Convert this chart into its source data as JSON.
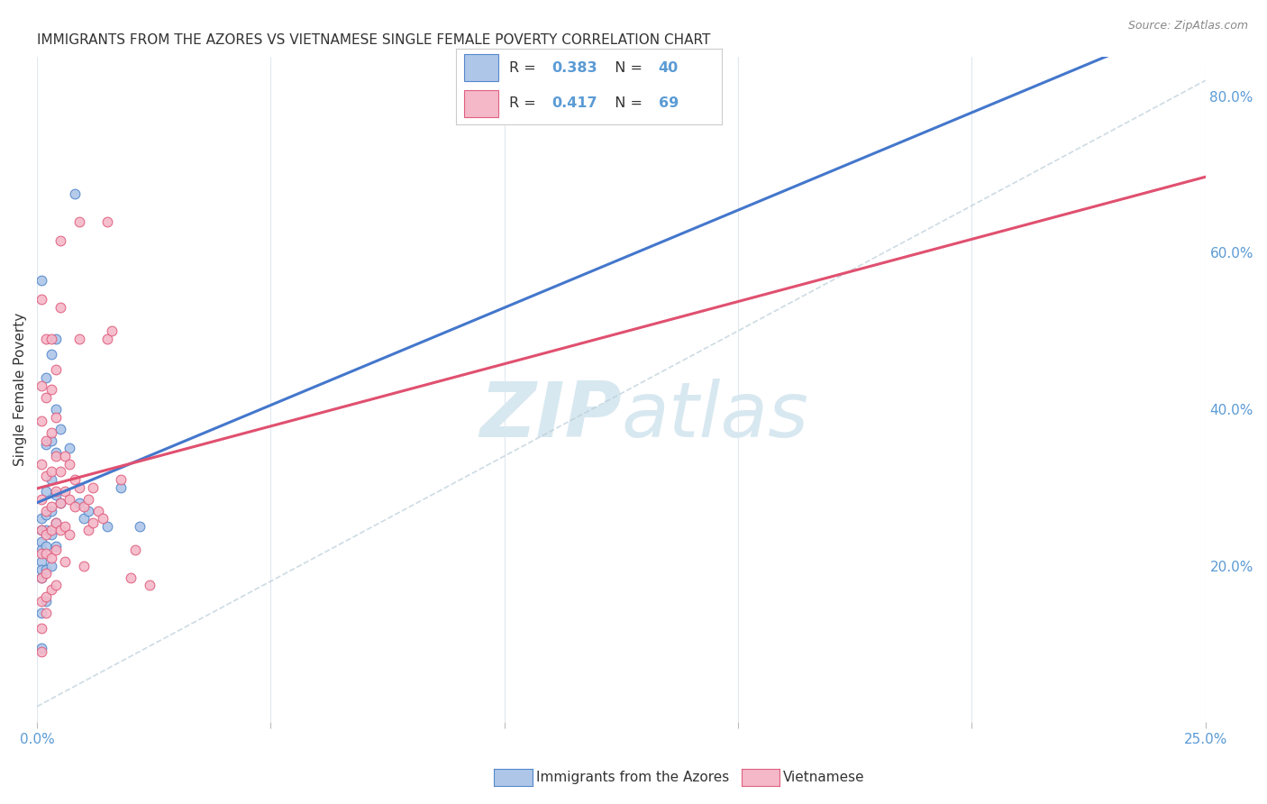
{
  "title": "IMMIGRANTS FROM THE AZORES VS VIETNAMESE SINGLE FEMALE POVERTY CORRELATION CHART",
  "source": "Source: ZipAtlas.com",
  "ylabel": "Single Female Poverty",
  "right_yticks": [
    "20.0%",
    "40.0%",
    "60.0%",
    "80.0%"
  ],
  "right_ytick_vals": [
    0.2,
    0.4,
    0.6,
    0.8
  ],
  "xlim": [
    0.0,
    0.25
  ],
  "ylim": [
    0.0,
    0.85
  ],
  "legend_azores_R": "0.383",
  "legend_azores_N": "40",
  "legend_viet_R": "0.417",
  "legend_viet_N": "69",
  "legend_label_azores": "Immigrants from the Azores",
  "legend_label_viet": "Vietnamese",
  "azores_color": "#aec6e8",
  "viet_color": "#f4b8c8",
  "azores_edge_color": "#5588cc",
  "viet_edge_color": "#e06080",
  "azores_line_color": "#4477cc",
  "viet_line_color": "#e05070",
  "ref_line_color": "#b8ccd8",
  "background_color": "#ffffff",
  "watermark_color": "#d8e8f0",
  "grid_color": "#e0e8f0",
  "text_color": "#333333",
  "tick_color": "#5b9bd5",
  "source_color": "#888888",
  "legend_text_color": "#333333",
  "legend_value_color": "#5b9bd5"
}
